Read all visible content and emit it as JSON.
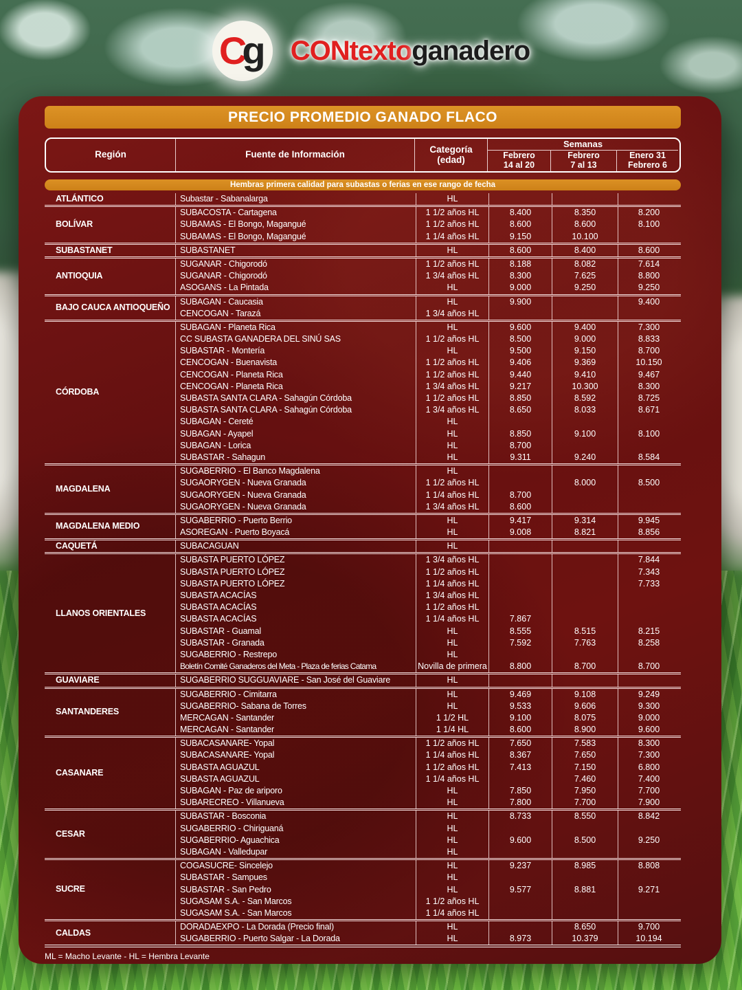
{
  "logo": {
    "monogram_c": "C",
    "monogram_g": "g",
    "brand_red": "CONtexto",
    "brand_black": "ganadero"
  },
  "title": "PRECIO PROMEDIO GANADO FLACO",
  "subtitle": "Hembras primera calidad para subastas o ferias en ese rango de fecha",
  "footnote": "ML = Macho Levante - HL = Hembra Levante",
  "colors": {
    "accent_orange": "#d5871e",
    "panel_red": "#6e1111",
    "text_white": "#ffffff",
    "brand_red": "#e02020",
    "brand_black": "#1c1c1c"
  },
  "header": {
    "region": "Región",
    "fuente": "Fuente de Información",
    "categoria_l1": "Categoría",
    "categoria_l2": "(edad)",
    "semanas": "Semanas",
    "weeks": [
      {
        "l1": "Febrero",
        "l2": "14 al 20"
      },
      {
        "l1": "Febrero",
        "l2": "7 al 13"
      },
      {
        "l1": "Enero 31",
        "l2": "Febrero 6"
      }
    ]
  },
  "table": {
    "groups": [
      {
        "region": "ATLÁNTICO",
        "rows": [
          [
            "Subastar - Sabanalarga",
            "HL",
            "",
            "",
            ""
          ]
        ]
      },
      {
        "region": "BOLÍVAR",
        "rows": [
          [
            "SUBACOSTA - Cartagena",
            "1 1/2 años HL",
            "8.400",
            "8.350",
            "8.200"
          ],
          [
            "SUBAMAS - El Bongo, Magangué",
            "1 1/2 años HL",
            "8.600",
            "8.600",
            "8.100"
          ],
          [
            "SUBAMAS - El Bongo, Magangué",
            "1 1/4 años HL",
            "9.150",
            "10.100",
            ""
          ]
        ]
      },
      {
        "region": "SUBASTANET",
        "rows": [
          [
            "SUBASTANET",
            "HL",
            "8.600",
            "8.400",
            "8.600"
          ]
        ]
      },
      {
        "region": "ANTIOQUIA",
        "rows": [
          [
            "SUGANAR - Chigorodó",
            "1 1/2 años HL",
            "8.188",
            "8.082",
            "7.614"
          ],
          [
            "SUGANAR - Chigorodó",
            "1 3/4 años HL",
            "8.300",
            "7.625",
            "8.800"
          ],
          [
            "ASOGANS - La Pintada",
            "HL",
            "9.000",
            "9.250",
            "9.250"
          ]
        ]
      },
      {
        "region": "BAJO CAUCA ANTIOQUEÑO",
        "rows": [
          [
            "SUBAGAN - Caucasia",
            "HL",
            "9.900",
            "",
            "9.400"
          ],
          [
            "CENCOGAN - Tarazá",
            "1 3/4 años HL",
            "",
            "",
            ""
          ]
        ]
      },
      {
        "region": "CÓRDOBA",
        "rows": [
          [
            "SUBAGAN - Planeta Rica",
            "HL",
            "9.600",
            "9.400",
            "7.300"
          ],
          [
            "CC SUBASTA GANADERA DEL SINÚ SAS",
            "1 1/2 años HL",
            "8.500",
            "9.000",
            "8.833"
          ],
          [
            "SUBASTAR - Montería",
            "HL",
            "9.500",
            "9.150",
            "8.700"
          ],
          [
            "CENCOGAN - Buenavista",
            "1 1/2 años HL",
            "9.406",
            "9.369",
            "10.150"
          ],
          [
            "CENCOGAN - Planeta Rica",
            "1 1/2 años HL",
            "9.440",
            "9.410",
            "9.467"
          ],
          [
            "CENCOGAN - Planeta Rica",
            "1 3/4 años HL",
            "9.217",
            "10.300",
            "8.300"
          ],
          [
            "SUBASTA SANTA CLARA - Sahagún Córdoba",
            "1 1/2 años HL",
            "8.850",
            "8.592",
            "8.725"
          ],
          [
            "SUBASTA SANTA CLARA - Sahagún Córdoba",
            "1 3/4 años HL",
            "8.650",
            "8.033",
            "8.671"
          ],
          [
            "SUBAGAN - Cereté",
            "HL",
            "",
            "",
            ""
          ],
          [
            "SUBAGAN - Ayapel",
            "HL",
            "8.850",
            "9.100",
            "8.100"
          ],
          [
            "SUBAGAN - Lorica",
            "HL",
            "8.700",
            "",
            ""
          ],
          [
            "SUBASTAR - Sahagun",
            "HL",
            "9.311",
            "9.240",
            "8.584"
          ]
        ]
      },
      {
        "region": "MAGDALENA",
        "rows": [
          [
            "SUGABERRIO - El Banco Magdalena",
            "HL",
            "",
            "",
            ""
          ],
          [
            "SUGAORYGEN - Nueva Granada",
            "1 1/2 años HL",
            "",
            "8.000",
            "8.500"
          ],
          [
            "SUGAORYGEN - Nueva Granada",
            "1 1/4 años HL",
            "8.700",
            "",
            ""
          ],
          [
            "SUGAORYGEN - Nueva Granada",
            "1 3/4 años HL",
            "8.600",
            "",
            ""
          ]
        ]
      },
      {
        "region": "MAGDALENA MEDIO",
        "rows": [
          [
            "SUGABERRIO - Puerto Berrio",
            "HL",
            "9.417",
            "9.314",
            "9.945"
          ],
          [
            "ASOREGAN - Puerto Boyacá",
            "HL",
            "9.008",
            "8.821",
            "8.856"
          ]
        ]
      },
      {
        "region": "CAQUETÁ",
        "rows": [
          [
            "SUBACAGUAN",
            "HL",
            "",
            "",
            ""
          ]
        ]
      },
      {
        "region": "LLANOS ORIENTALES",
        "rows": [
          [
            "SUBASTA PUERTO LÓPEZ",
            "1 3/4 años HL",
            "",
            "",
            "7.844"
          ],
          [
            "SUBASTA PUERTO LÓPEZ",
            "1 1/2 años HL",
            "",
            "",
            "7.343"
          ],
          [
            "SUBASTA PUERTO LÓPEZ",
            "1 1/4 años HL",
            "",
            "",
            "7.733"
          ],
          [
            "SUBASTA ACACÍAS",
            "1 3/4 años HL",
            "",
            "",
            ""
          ],
          [
            "SUBASTA ACACÍAS",
            "1 1/2 años HL",
            "",
            "",
            ""
          ],
          [
            "SUBASTA ACACÍAS",
            "1 1/4 años HL",
            "7.867",
            "",
            ""
          ],
          [
            "SUBASTAR - Guamal",
            "HL",
            "8.555",
            "8.515",
            "8.215"
          ],
          [
            "SUBASTAR - Granada",
            "HL",
            "7.592",
            "7.763",
            "8.258"
          ],
          [
            "SUGABERRIO - Restrepo",
            "HL",
            "",
            "",
            ""
          ],
          [
            "Boletín Comité Ganaderos del Meta - Plaza de ferias Catama",
            "Novilla de primera",
            "8.800",
            "8.700",
            "8.700"
          ]
        ]
      },
      {
        "region": "GUAVIARE",
        "rows": [
          [
            "SUGABERRIO SUGGUAVIARE - San José del Guaviare",
            "HL",
            "",
            "",
            ""
          ]
        ]
      },
      {
        "region": "SANTANDERES",
        "rows": [
          [
            "SUGABERRIO - Cimitarra",
            "HL",
            "9.469",
            "9.108",
            "9.249"
          ],
          [
            "SUGABERRIO- Sabana de Torres",
            "HL",
            "9.533",
            "9.606",
            "9.300"
          ],
          [
            "MERCAGAN - Santander",
            "1 1/2 HL",
            "9.100",
            "8.075",
            "9.000"
          ],
          [
            "MERCAGAN - Santander",
            "1 1/4 HL",
            "8.600",
            "8.900",
            "9.600"
          ]
        ]
      },
      {
        "region": "CASANARE",
        "rows": [
          [
            "SUBACASANARE- Yopal",
            "1 1/2 años HL",
            "7.650",
            "7.583",
            "8.300"
          ],
          [
            "SUBACASANARE- Yopal",
            "1 1/4 años HL",
            "8.367",
            "7.650",
            "7.300"
          ],
          [
            "SUBASTA AGUAZUL",
            "1 1/2 años HL",
            "7.413",
            "7.150",
            "6.800"
          ],
          [
            "SUBASTA AGUAZUL",
            "1 1/4 años HL",
            "",
            "7.460",
            "7.400"
          ],
          [
            "SUBAGAN - Paz de ariporo",
            "HL",
            "7.850",
            "7.950",
            "7.700"
          ],
          [
            "SUBARECREO - Villanueva",
            "HL",
            "7.800",
            "7.700",
            "7.900"
          ]
        ]
      },
      {
        "region": "CESAR",
        "rows": [
          [
            "SUBASTAR - Bosconia",
            "HL",
            "8.733",
            "8.550",
            "8.842"
          ],
          [
            "SUGABERRIO - Chiriguaná",
            "HL",
            "",
            "",
            ""
          ],
          [
            "SUGABERRIO- Aguachica",
            "HL",
            "9.600",
            "8.500",
            "9.250"
          ],
          [
            "SUBAGAN - Valledupar",
            "HL",
            "",
            "",
            ""
          ]
        ]
      },
      {
        "region": "SUCRE",
        "rows": [
          [
            "COGASUCRE- Sincelejo",
            "HL",
            "9.237",
            "8.985",
            "8.808"
          ],
          [
            "SUBASTAR - Sampues",
            "HL",
            "",
            "",
            ""
          ],
          [
            "SUBASTAR - San Pedro",
            "HL",
            "9.577",
            "8.881",
            "9.271"
          ],
          [
            "SUGASAM S.A. - San Marcos",
            "1 1/2 años HL",
            "",
            "",
            ""
          ],
          [
            "SUGASAM S.A. - San Marcos",
            "1 1/4 años HL",
            "",
            "",
            ""
          ]
        ]
      },
      {
        "region": "CALDAS",
        "rows": [
          [
            "DORADAEXPO - La Dorada (Precio final)",
            "HL",
            "",
            "8.650",
            "9.700"
          ],
          [
            "SUGABERRIO - Puerto Salgar - La Dorada",
            "HL",
            "8.973",
            "10.379",
            "10.194"
          ]
        ]
      }
    ]
  }
}
